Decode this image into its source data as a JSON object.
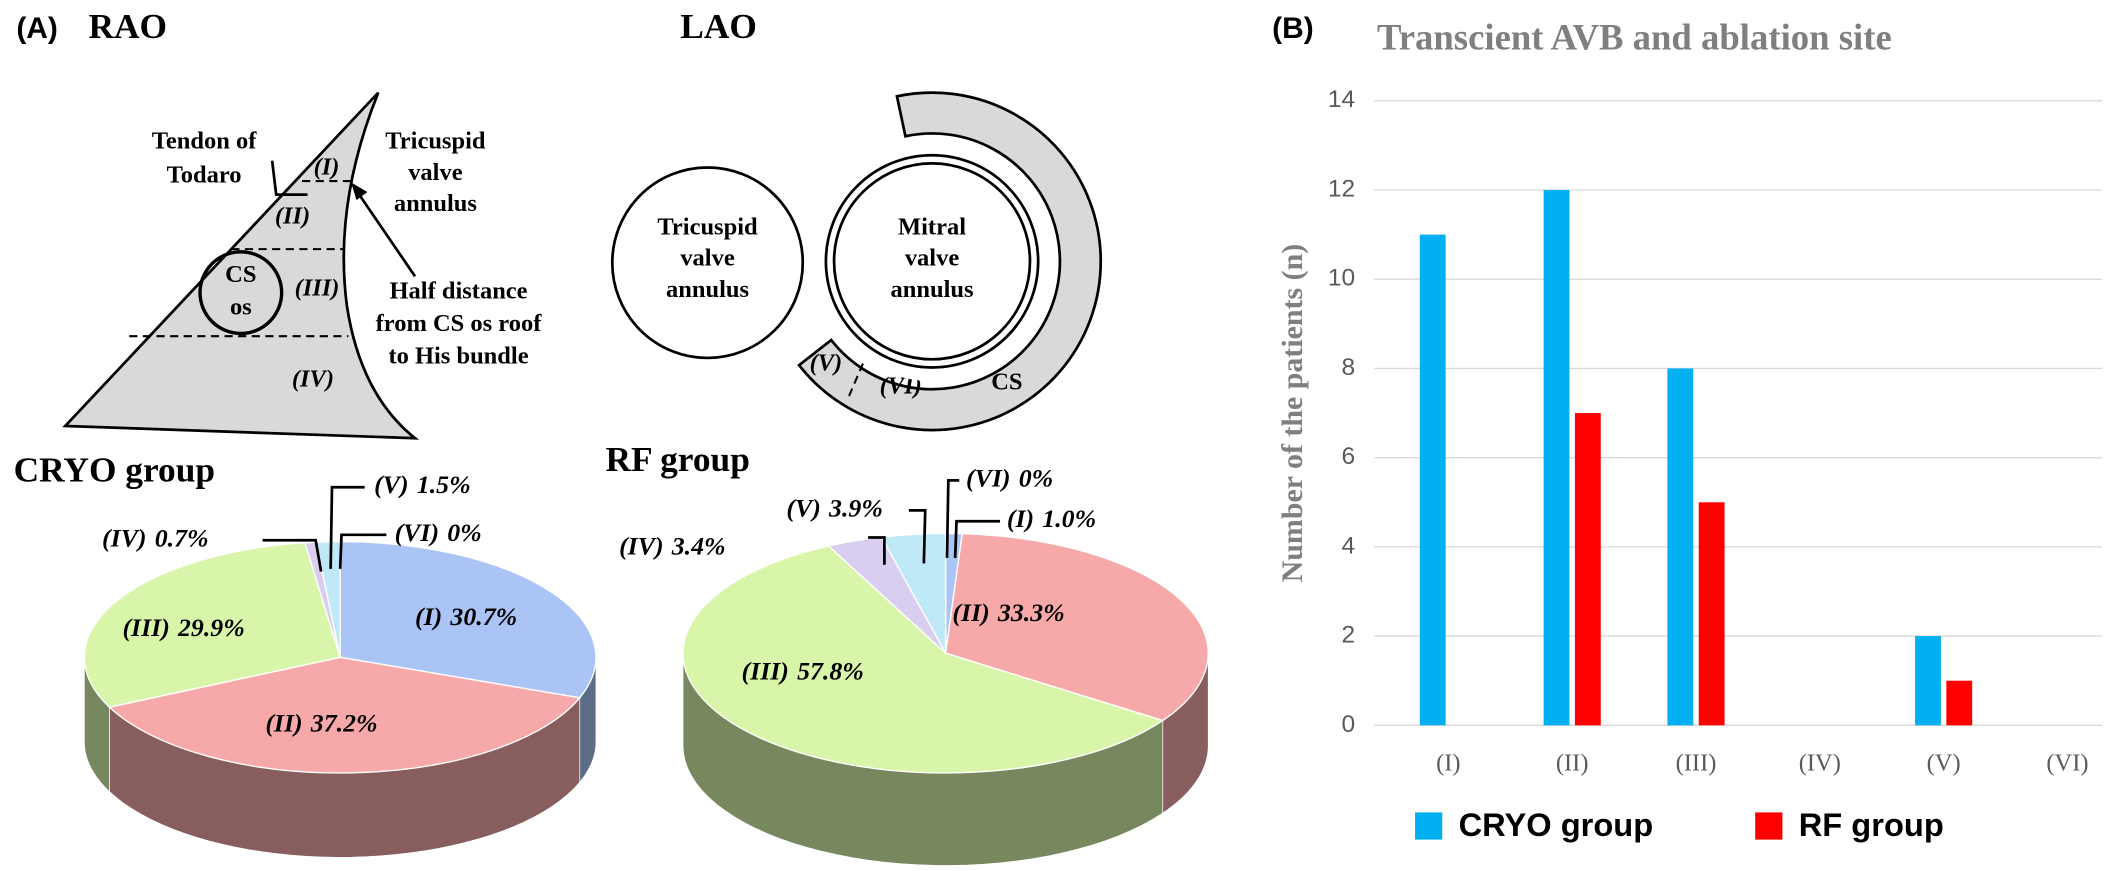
{
  "figure": {
    "panel_a": "(A)",
    "panel_b": "(B)"
  },
  "rao": {
    "title": "RAO",
    "tendon": [
      "Tendon of",
      "Todaro"
    ],
    "regions": [
      "(I)",
      "(II)",
      "(III)",
      "(IV)"
    ],
    "cs_os": [
      "CS",
      "os"
    ],
    "tricuspid": [
      "Tricuspid",
      "valve",
      "annulus"
    ],
    "half_distance": [
      "Half distance",
      "from CS os roof",
      "to His bundle"
    ]
  },
  "lao": {
    "title": "LAO",
    "tricuspid": [
      "Tricuspid",
      "valve",
      "annulus"
    ],
    "mitral": [
      "Mitral",
      "valve",
      "annulus"
    ],
    "regions": [
      "(V)",
      "(VI)"
    ],
    "cs": "CS"
  },
  "chart_data": [
    {
      "type": "pie",
      "title": "CRYO group",
      "categories": [
        "(I)",
        "(II)",
        "(III)",
        "(IV)",
        "(V)",
        "(VI)"
      ],
      "values": [
        30.7,
        37.2,
        29.9,
        0.7,
        1.5,
        0
      ],
      "value_labels": [
        "30.7%",
        "37.2%",
        "29.9%",
        "0.7%",
        "1.5%",
        "0%"
      ],
      "colors": [
        "#a9c4f5",
        "#f7a9a9",
        "#d9f5aa",
        "#d9cdf0",
        "#bfe9f7",
        "#e0e0e0"
      ]
    },
    {
      "type": "pie",
      "title": "RF group",
      "categories": [
        "(I)",
        "(II)",
        "(III)",
        "(IV)",
        "(V)",
        "(VI)"
      ],
      "values": [
        1.0,
        33.3,
        57.8,
        3.4,
        3.9,
        0
      ],
      "value_labels": [
        "1.0%",
        "33.3%",
        "57.8%",
        "3.4%",
        "3.9%",
        "0%"
      ],
      "colors": [
        "#a9c4f5",
        "#f7a9a9",
        "#d9f5aa",
        "#d9cdf0",
        "#bfe9f7",
        "#e0e0e0"
      ]
    },
    {
      "type": "bar",
      "title": "Transcient AVB and ablation site",
      "y_label": "Number of the patients (n)",
      "categories": [
        "(I)",
        "(II)",
        "(III)",
        "(IV)",
        "(V)",
        "(VI)"
      ],
      "series": [
        {
          "name": "CRYO group",
          "color": "#00b0f0",
          "values": [
            11,
            12,
            8,
            0,
            2,
            0
          ]
        },
        {
          "name": "RF group",
          "color": "#ff0000",
          "values": [
            0,
            7,
            5,
            0,
            1,
            0
          ]
        }
      ],
      "ylim": [
        0,
        14
      ],
      "yticks": [
        0,
        2,
        4,
        6,
        8,
        10,
        12,
        14
      ],
      "grid": true,
      "legend": "bottom"
    }
  ]
}
